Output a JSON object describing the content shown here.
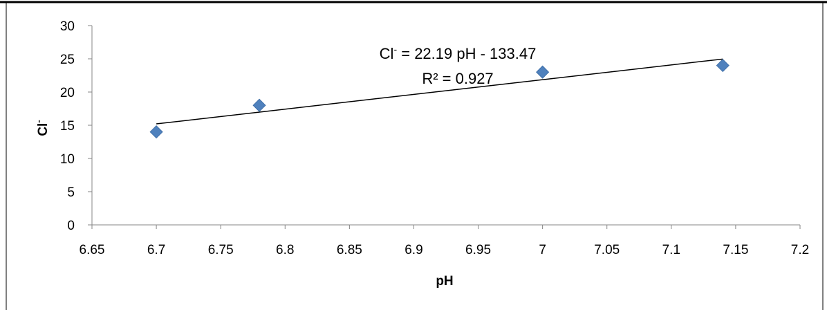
{
  "chart_data": {
    "type": "scatter",
    "title": "",
    "xlabel": "pH",
    "ylabel": "Cl",
    "ylabel_superscript": "-",
    "xlim": [
      6.65,
      7.2
    ],
    "ylim": [
      0,
      30
    ],
    "x_ticks": [
      "6.65",
      "6.7",
      "6.75",
      "6.8",
      "6.85",
      "6.9",
      "6.95",
      "7",
      "7.05",
      "7.1",
      "7.15",
      "7.2"
    ],
    "y_ticks": [
      "0",
      "5",
      "10",
      "15",
      "20",
      "25",
      "30"
    ],
    "grid": false,
    "legend": "none",
    "marker": "diamond",
    "marker_color": "#4F81BD",
    "series": [
      {
        "x": [
          6.7,
          6.78,
          7.0,
          7.14
        ],
        "y": [
          14,
          18,
          23,
          24
        ]
      }
    ],
    "trendline": {
      "type": "linear",
      "slope": 22.19,
      "intercept": -133.47,
      "x_range": [
        6.7,
        7.14
      ],
      "color": "#000000"
    },
    "annotations": {
      "equation_prefix": "Cl",
      "equation_superscript": "-",
      "equation_suffix": " = 22.19 pH - 133.47",
      "r_squared": "R² = 0.927"
    }
  }
}
